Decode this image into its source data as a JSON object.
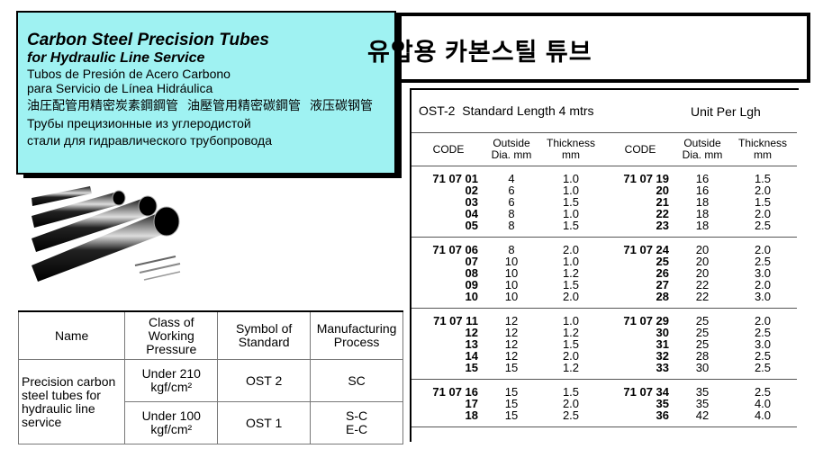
{
  "header": {
    "title_en": [
      "Carbon Steel Precision Tubes",
      "for Hydraulic Line Service"
    ],
    "title_es": [
      "Tubos de Presión de Acero Carbono",
      "para Servicio de Línea Hidráulica"
    ],
    "title_cjk": [
      "油圧配管用精密炭素鋼鋼管",
      "油壓管用精密碳鋼管",
      "液压碳钢管"
    ],
    "title_ru": [
      "Трубы прецизионные из углеродистой",
      "стали для гидравлического трубопровода"
    ],
    "title_ko": "유압용 카본스틸 튜브"
  },
  "spec_table": {
    "headers": [
      "Name",
      "Class of Working Pressure",
      "Symbol of Standard",
      "Manufacturing Process"
    ],
    "name": "Precision carbon steel tubes for hydraulic line service",
    "rows": [
      [
        "Under 210 kgf/cm²",
        "OST 2",
        "SC"
      ],
      [
        "Under 100 kgf/cm²",
        "OST 1",
        "S-C E-C"
      ]
    ]
  },
  "product_table": {
    "caption": "OST-2  Standard Length 4 mtrs",
    "unit": "Unit Per Lgh",
    "headers": [
      "CODE",
      "Outside Dia. mm",
      "Thickness mm",
      "CODE",
      "Outside Dia. mm",
      "Thickness mm"
    ],
    "groups": [
      [
        [
          "71 07 01",
          "4",
          "1.0",
          "71 07 19",
          "16",
          "1.5"
        ],
        [
          "02",
          "6",
          "1.0",
          "20",
          "16",
          "2.0"
        ],
        [
          "03",
          "6",
          "1.5",
          "21",
          "18",
          "1.5"
        ],
        [
          "04",
          "8",
          "1.0",
          "22",
          "18",
          "2.0"
        ],
        [
          "05",
          "8",
          "1.5",
          "23",
          "18",
          "2.5"
        ]
      ],
      [
        [
          "71 07 06",
          "8",
          "2.0",
          "71 07 24",
          "20",
          "2.0"
        ],
        [
          "07",
          "10",
          "1.0",
          "25",
          "20",
          "2.5"
        ],
        [
          "08",
          "10",
          "1.2",
          "26",
          "20",
          "3.0"
        ],
        [
          "09",
          "10",
          "1.5",
          "27",
          "22",
          "2.0"
        ],
        [
          "10",
          "10",
          "2.0",
          "28",
          "22",
          "3.0"
        ]
      ],
      [
        [
          "71 07 11",
          "12",
          "1.0",
          "71 07 29",
          "25",
          "2.0"
        ],
        [
          "12",
          "12",
          "1.2",
          "30",
          "25",
          "2.5"
        ],
        [
          "13",
          "12",
          "1.5",
          "31",
          "25",
          "3.0"
        ],
        [
          "14",
          "12",
          "2.0",
          "32",
          "28",
          "2.5"
        ],
        [
          "15",
          "15",
          "1.2",
          "33",
          "30",
          "2.5"
        ]
      ],
      [
        [
          "71 07 16",
          "15",
          "1.5",
          "71 07 34",
          "35",
          "2.5"
        ],
        [
          "17",
          "15",
          "2.0",
          "35",
          "35",
          "4.0"
        ],
        [
          "18",
          "15",
          "2.5",
          "36",
          "42",
          "4.0"
        ]
      ]
    ]
  }
}
